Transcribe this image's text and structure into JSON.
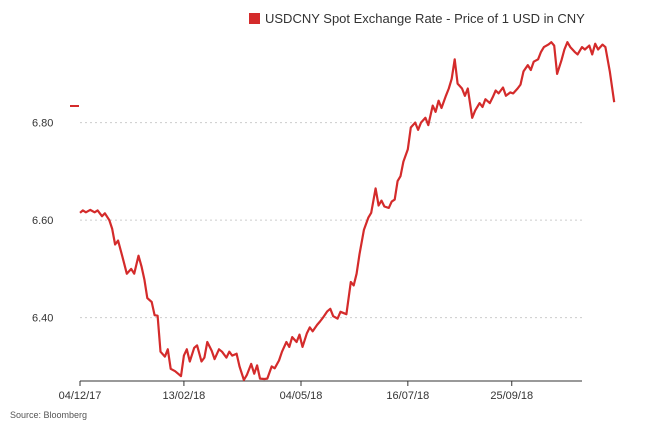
{
  "chart_data": {
    "type": "line",
    "title": "",
    "xlabel": "",
    "ylabel": "",
    "ylim": [
      6.27,
      6.99
    ],
    "yticks": [
      "6.40",
      "6.60",
      "6.80"
    ],
    "x_start": "04/12/17",
    "x_end": "12/11/18",
    "xticks": [
      {
        "label": "04/12/17",
        "date": "2017-12-04"
      },
      {
        "label": "13/02/18",
        "date": "2018-02-13"
      },
      {
        "label": "04/05/18",
        "date": "2018-05-04"
      },
      {
        "label": "16/07/18",
        "date": "2018-07-16"
      },
      {
        "label": "25/09/18",
        "date": "2018-09-25"
      }
    ],
    "grid": true,
    "legend_position": "top-right",
    "series": [
      {
        "name": "USDCNY Spot Exchange Rate - Price of 1 USD in CNY",
        "color": "#d42b2b",
        "points": [
          [
            "2017-12-04",
            6.615
          ],
          [
            "2017-12-06",
            6.62
          ],
          [
            "2017-12-08",
            6.616
          ],
          [
            "2017-12-11",
            6.621
          ],
          [
            "2017-12-14",
            6.616
          ],
          [
            "2017-12-16",
            6.62
          ],
          [
            "2017-12-19",
            6.608
          ],
          [
            "2017-12-21",
            6.614
          ],
          [
            "2017-12-24",
            6.6
          ],
          [
            "2017-12-26",
            6.582
          ],
          [
            "2017-12-28",
            6.55
          ],
          [
            "2017-12-30",
            6.558
          ],
          [
            "2018-01-02",
            6.525
          ],
          [
            "2018-01-05",
            6.49
          ],
          [
            "2018-01-08",
            6.5
          ],
          [
            "2018-01-10",
            6.49
          ],
          [
            "2018-01-13",
            6.527
          ],
          [
            "2018-01-15",
            6.505
          ],
          [
            "2018-01-17",
            6.478
          ],
          [
            "2018-01-19",
            6.44
          ],
          [
            "2018-01-22",
            6.432
          ],
          [
            "2018-01-24",
            6.405
          ],
          [
            "2018-01-26",
            6.404
          ],
          [
            "2018-01-28",
            6.33
          ],
          [
            "2018-01-31",
            6.32
          ],
          [
            "2018-02-02",
            6.335
          ],
          [
            "2018-02-04",
            6.295
          ],
          [
            "2018-02-07",
            6.29
          ],
          [
            "2018-02-09",
            6.285
          ],
          [
            "2018-02-11",
            6.28
          ],
          [
            "2018-02-13",
            6.322
          ],
          [
            "2018-02-15",
            6.335
          ],
          [
            "2018-02-17",
            6.31
          ],
          [
            "2018-02-20",
            6.338
          ],
          [
            "2018-02-22",
            6.343
          ],
          [
            "2018-02-25",
            6.31
          ],
          [
            "2018-02-27",
            6.318
          ],
          [
            "2018-03-01",
            6.35
          ],
          [
            "2018-03-04",
            6.332
          ],
          [
            "2018-03-06",
            6.315
          ],
          [
            "2018-03-09",
            6.335
          ],
          [
            "2018-03-11",
            6.33
          ],
          [
            "2018-03-14",
            6.318
          ],
          [
            "2018-03-16",
            6.33
          ],
          [
            "2018-03-18",
            6.322
          ],
          [
            "2018-03-21",
            6.326
          ],
          [
            "2018-03-23",
            6.3
          ],
          [
            "2018-03-26",
            6.272
          ],
          [
            "2018-03-28",
            6.282
          ],
          [
            "2018-03-31",
            6.305
          ],
          [
            "2018-04-02",
            6.285
          ],
          [
            "2018-04-04",
            6.302
          ],
          [
            "2018-04-06",
            6.275
          ],
          [
            "2018-04-09",
            6.274
          ],
          [
            "2018-04-11",
            6.275
          ],
          [
            "2018-04-14",
            6.3
          ],
          [
            "2018-04-16",
            6.296
          ],
          [
            "2018-04-19",
            6.312
          ],
          [
            "2018-04-21",
            6.33
          ],
          [
            "2018-04-24",
            6.35
          ],
          [
            "2018-04-26",
            6.34
          ],
          [
            "2018-04-28",
            6.36
          ],
          [
            "2018-05-01",
            6.35
          ],
          [
            "2018-05-03",
            6.365
          ],
          [
            "2018-05-05",
            6.34
          ],
          [
            "2018-05-08",
            6.368
          ],
          [
            "2018-05-10",
            6.38
          ],
          [
            "2018-05-12",
            6.372
          ],
          [
            "2018-05-15",
            6.385
          ],
          [
            "2018-05-17",
            6.392
          ],
          [
            "2018-05-19",
            6.4
          ],
          [
            "2018-05-22",
            6.413
          ],
          [
            "2018-05-24",
            6.418
          ],
          [
            "2018-05-26",
            6.403
          ],
          [
            "2018-05-29",
            6.398
          ],
          [
            "2018-05-31",
            6.412
          ],
          [
            "2018-06-04",
            6.407
          ],
          [
            "2018-06-07",
            6.473
          ],
          [
            "2018-06-09",
            6.466
          ],
          [
            "2018-06-11",
            6.49
          ],
          [
            "2018-06-13",
            6.53
          ],
          [
            "2018-06-16",
            6.58
          ],
          [
            "2018-06-19",
            6.605
          ],
          [
            "2018-06-21",
            6.615
          ],
          [
            "2018-06-24",
            6.665
          ],
          [
            "2018-06-26",
            6.63
          ],
          [
            "2018-06-28",
            6.64
          ],
          [
            "2018-06-30",
            6.628
          ],
          [
            "2018-07-03",
            6.625
          ],
          [
            "2018-07-05",
            6.638
          ],
          [
            "2018-07-07",
            6.642
          ],
          [
            "2018-07-09",
            6.68
          ],
          [
            "2018-07-11",
            6.69
          ],
          [
            "2018-07-13",
            6.72
          ],
          [
            "2018-07-16",
            6.745
          ],
          [
            "2018-07-18",
            6.79
          ],
          [
            "2018-07-21",
            6.8
          ],
          [
            "2018-07-23",
            6.785
          ],
          [
            "2018-07-25",
            6.8
          ],
          [
            "2018-07-28",
            6.81
          ],
          [
            "2018-07-30",
            6.795
          ],
          [
            "2018-08-02",
            6.835
          ],
          [
            "2018-08-04",
            6.822
          ],
          [
            "2018-08-06",
            6.845
          ],
          [
            "2018-08-08",
            6.83
          ],
          [
            "2018-08-11",
            6.855
          ],
          [
            "2018-08-13",
            6.87
          ],
          [
            "2018-08-15",
            6.89
          ],
          [
            "2018-08-17",
            6.93
          ],
          [
            "2018-08-19",
            6.88
          ],
          [
            "2018-08-22",
            6.87
          ],
          [
            "2018-08-24",
            6.855
          ],
          [
            "2018-08-26",
            6.87
          ],
          [
            "2018-08-29",
            6.81
          ],
          [
            "2018-08-31",
            6.825
          ],
          [
            "2018-09-03",
            6.84
          ],
          [
            "2018-09-05",
            6.832
          ],
          [
            "2018-09-07",
            6.848
          ],
          [
            "2018-09-10",
            6.84
          ],
          [
            "2018-09-12",
            6.852
          ],
          [
            "2018-09-14",
            6.866
          ],
          [
            "2018-09-16",
            6.86
          ],
          [
            "2018-09-19",
            6.872
          ],
          [
            "2018-09-21",
            6.855
          ],
          [
            "2018-09-24",
            6.862
          ],
          [
            "2018-09-26",
            6.86
          ],
          [
            "2018-09-29",
            6.87
          ],
          [
            "2018-10-01",
            6.878
          ],
          [
            "2018-10-03",
            6.905
          ],
          [
            "2018-10-06",
            6.918
          ],
          [
            "2018-10-08",
            6.908
          ],
          [
            "2018-10-10",
            6.925
          ],
          [
            "2018-10-13",
            6.93
          ],
          [
            "2018-10-15",
            6.945
          ],
          [
            "2018-10-17",
            6.955
          ],
          [
            "2018-10-20",
            6.96
          ],
          [
            "2018-10-22",
            6.965
          ],
          [
            "2018-10-24",
            6.958
          ],
          [
            "2018-10-26",
            6.9
          ],
          [
            "2018-10-29",
            6.928
          ],
          [
            "2018-10-31",
            6.95
          ],
          [
            "2018-11-02",
            6.965
          ],
          [
            "2018-11-04",
            6.955
          ],
          [
            "2018-11-07",
            6.945
          ],
          [
            "2018-11-09",
            6.94
          ],
          [
            "2018-11-12",
            6.955
          ],
          [
            "2018-11-14",
            6.95
          ],
          [
            "2018-11-17",
            6.958
          ],
          [
            "2018-11-19",
            6.94
          ],
          [
            "2018-11-21",
            6.962
          ],
          [
            "2018-11-23",
            6.95
          ],
          [
            "2018-11-26",
            6.96
          ],
          [
            "2018-11-28",
            6.955
          ],
          [
            "2018-12-01",
            6.905
          ],
          [
            "2018-12-04",
            6.842
          ]
        ]
      }
    ],
    "source": "Source: Bloomberg"
  }
}
